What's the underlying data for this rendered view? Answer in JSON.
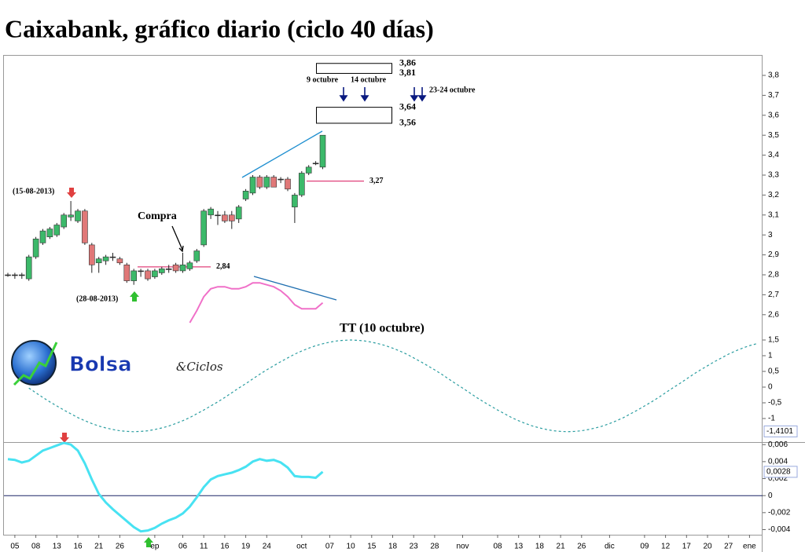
{
  "title": "Caixabank, gráfico diario (ciclo 40 días)",
  "logo": {
    "name": "Bolsa",
    "suffix": "&Ciclos"
  },
  "chart_data": [
    {
      "type": "candlestick",
      "categories": [
        null,
        "05",
        null,
        null,
        "08",
        null,
        null,
        "13",
        null,
        null,
        "16",
        null,
        null,
        "21",
        null,
        null,
        "26",
        null,
        null,
        null,
        null,
        "ep",
        null,
        null,
        null,
        "06",
        null,
        null,
        "11",
        null,
        null,
        "16",
        null,
        null,
        "19",
        null,
        null,
        "24",
        null,
        null,
        null,
        null,
        "oct",
        null,
        null,
        null,
        "07",
        null,
        null,
        "10",
        null,
        null,
        "15",
        null,
        null,
        "18",
        null,
        null,
        "23",
        null,
        null,
        "28",
        null,
        null,
        null,
        "nov",
        null,
        null,
        null,
        null,
        "08",
        null,
        null,
        "13",
        null,
        null,
        "18",
        null,
        null,
        "21",
        null,
        null,
        "26",
        null,
        null,
        null,
        "dic",
        null,
        null,
        null,
        null,
        "09",
        null,
        null,
        "12",
        null,
        null,
        "17",
        null,
        null,
        "20",
        null,
        null,
        "27",
        null,
        null,
        "ene",
        null
      ],
      "open": [
        2.8,
        2.8,
        2.8,
        2.78,
        2.89,
        2.96,
        2.99,
        3.0,
        3.04,
        3.09,
        3.07,
        3.12,
        2.95,
        2.86,
        2.87,
        2.89,
        2.88,
        2.85,
        2.77,
        2.82,
        2.82,
        2.79,
        2.81,
        2.83,
        2.85,
        2.82,
        2.83,
        2.87,
        2.95,
        3.1,
        3.1,
        3.1,
        3.1,
        3.08,
        3.18,
        3.21,
        3.29,
        3.24,
        3.29,
        3.28,
        3.28,
        3.14,
        3.2,
        3.31,
        3.36,
        3.34,
        null,
        null,
        null,
        null,
        null,
        null,
        null,
        null,
        null,
        null,
        null,
        null,
        null,
        null,
        null,
        null,
        null,
        null,
        null,
        null,
        null,
        null,
        null,
        null,
        null,
        null,
        null,
        null,
        null,
        null,
        null,
        null,
        null,
        null,
        null,
        null,
        null,
        null,
        null,
        null,
        null,
        null,
        null,
        null,
        null,
        null,
        null,
        null,
        null,
        null,
        null,
        null,
        null,
        null,
        null,
        null,
        null,
        null,
        null,
        null,
        null,
        null
      ],
      "high": [
        2.81,
        2.81,
        2.81,
        2.9,
        2.99,
        3.03,
        3.04,
        3.06,
        3.11,
        3.17,
        3.13,
        3.13,
        2.96,
        2.89,
        2.9,
        2.91,
        2.89,
        2.86,
        2.83,
        2.83,
        2.83,
        2.83,
        2.84,
        2.85,
        2.86,
        2.91,
        2.87,
        2.93,
        3.13,
        3.14,
        3.12,
        3.12,
        3.12,
        3.15,
        3.23,
        3.3,
        3.3,
        3.3,
        3.3,
        3.29,
        3.29,
        3.21,
        3.32,
        3.35,
        3.37,
        3.5,
        null,
        null,
        null,
        null,
        null,
        null,
        null,
        null,
        null,
        null,
        null,
        null,
        null,
        null,
        null,
        null,
        null,
        null,
        null,
        null,
        null,
        null,
        null,
        null,
        null,
        null,
        null,
        null,
        null,
        null,
        null,
        null,
        null,
        null,
        null,
        null,
        null,
        null,
        null,
        null,
        null,
        null,
        null,
        null,
        null,
        null,
        null,
        null,
        null,
        null,
        null,
        null,
        null,
        null,
        null,
        null,
        null,
        null,
        null,
        null,
        null,
        null
      ],
      "low": [
        2.79,
        2.78,
        2.78,
        2.77,
        2.88,
        2.95,
        2.98,
        2.99,
        3.03,
        3.07,
        3.06,
        2.95,
        2.81,
        2.81,
        2.85,
        2.87,
        2.85,
        2.76,
        2.75,
        2.79,
        2.77,
        2.78,
        2.8,
        2.81,
        2.81,
        2.81,
        2.82,
        2.86,
        2.94,
        3.08,
        3.05,
        3.06,
        3.03,
        3.06,
        3.17,
        3.2,
        3.23,
        3.23,
        3.24,
        3.26,
        3.22,
        3.06,
        3.19,
        3.3,
        3.35,
        3.33,
        null,
        null,
        null,
        null,
        null,
        null,
        null,
        null,
        null,
        null,
        null,
        null,
        null,
        null,
        null,
        null,
        null,
        null,
        null,
        null,
        null,
        null,
        null,
        null,
        null,
        null,
        null,
        null,
        null,
        null,
        null,
        null,
        null,
        null,
        null,
        null,
        null,
        null,
        null,
        null,
        null,
        null,
        null,
        null,
        null,
        null,
        null,
        null,
        null,
        null,
        null,
        null,
        null,
        null,
        null,
        null,
        null,
        null,
        null,
        null,
        null,
        null
      ],
      "close": [
        2.8,
        2.8,
        2.8,
        2.89,
        2.98,
        3.02,
        3.03,
        3.05,
        3.1,
        3.1,
        3.12,
        2.96,
        2.85,
        2.88,
        2.89,
        2.89,
        2.86,
        2.77,
        2.82,
        2.82,
        2.78,
        2.82,
        2.83,
        2.83,
        2.82,
        2.85,
        2.86,
        2.92,
        3.12,
        3.13,
        3.1,
        3.07,
        3.07,
        3.14,
        3.22,
        3.29,
        3.24,
        3.29,
        3.24,
        3.28,
        3.23,
        3.2,
        3.31,
        3.34,
        3.36,
        3.5,
        null,
        null,
        null,
        null,
        null,
        null,
        null,
        null,
        null,
        null,
        null,
        null,
        null,
        null,
        null,
        null,
        null,
        null,
        null,
        null,
        null,
        null,
        null,
        null,
        null,
        null,
        null,
        null,
        null,
        null,
        null,
        null,
        null,
        null,
        null,
        null,
        null,
        null,
        null,
        null,
        null,
        null,
        null,
        null,
        null,
        null,
        null,
        null,
        null,
        null,
        null,
        null,
        null,
        null,
        null,
        null,
        null,
        null,
        null,
        null,
        null,
        null
      ],
      "up_color": "#3cb96a",
      "down_color": "#e07878",
      "series": [
        {
          "color": "#f070c8",
          "values": [
            null,
            null,
            null,
            null,
            null,
            null,
            null,
            null,
            null,
            null,
            null,
            null,
            null,
            null,
            null,
            null,
            null,
            null,
            null,
            null,
            null,
            null,
            null,
            null,
            null,
            null,
            2.56,
            2.62,
            2.69,
            2.73,
            2.74,
            2.74,
            2.73,
            2.73,
            2.74,
            2.76,
            2.76,
            2.75,
            2.74,
            2.72,
            2.69,
            2.65,
            2.63,
            2.63,
            2.63,
            2.66,
            null,
            null,
            null,
            null,
            null,
            null,
            null,
            null,
            null,
            null,
            null,
            null,
            null,
            null,
            null,
            null,
            null,
            null,
            null,
            null,
            null,
            null,
            null,
            null,
            null,
            null,
            null,
            null,
            null,
            null,
            null,
            null,
            null,
            null,
            null,
            null,
            null,
            null,
            null,
            null,
            null,
            null,
            null,
            null,
            null,
            null,
            null,
            null,
            null,
            null,
            null,
            null,
            null,
            null,
            null,
            null,
            null,
            null,
            null,
            null,
            null,
            null
          ]
        }
      ],
      "levels": [
        {
          "value": 2.84,
          "label": "2,84"
        },
        {
          "value": 3.27,
          "label": "3,27"
        }
      ],
      "level_color": "#e0407a",
      "targets": [
        {
          "high": 3.86,
          "low": 3.81,
          "high_label": "3,86",
          "low_label": "3,81"
        },
        {
          "high": 3.64,
          "low": 3.56,
          "high_label": "3,64",
          "low_label": "3,56"
        }
      ],
      "annotations": [
        "(15-08-2013)",
        "(28-08-2013)",
        "Compra",
        "9 octubre",
        "14 octubre",
        "23-24 octubre"
      ],
      "ylim": [
        2.55,
        3.9
      ],
      "yticks": [
        {
          "value": 2.6,
          "label": "2,6"
        },
        {
          "value": 2.7,
          "label": "2,7"
        },
        {
          "value": 2.8,
          "label": "2,8"
        },
        {
          "value": 2.9,
          "label": "2,9"
        },
        3,
        {
          "value": 3.1,
          "label": "3,1"
        },
        {
          "value": 3.2,
          "label": "3,2"
        },
        {
          "value": 3.3,
          "label": "3,3"
        },
        {
          "value": 3.4,
          "label": "3,4"
        },
        {
          "value": 3.5,
          "label": "3,5"
        },
        {
          "value": 3.6,
          "label": "3,6"
        },
        {
          "value": 3.7,
          "label": "3,7"
        },
        {
          "value": 3.8,
          "label": "3,8"
        }
      ]
    },
    {
      "type": "line",
      "title": "TT (10 octubre)",
      "color": "#2a9da0",
      "dashed": true,
      "values": [
        null,
        null,
        null,
        -0.03,
        -0.18,
        -0.33,
        -0.47,
        -0.6,
        -0.73,
        -0.85,
        -0.97,
        -1.07,
        -1.16,
        -1.24,
        -1.3,
        -1.35,
        -1.39,
        -1.41,
        -1.42,
        -1.41,
        -1.39,
        -1.35,
        -1.3,
        -1.24,
        -1.16,
        -1.07,
        -0.97,
        -0.85,
        -0.73,
        -0.6,
        -0.47,
        -0.33,
        -0.18,
        -0.03,
        0.11,
        0.26,
        0.41,
        0.55,
        0.68,
        0.81,
        0.93,
        1.05,
        1.15,
        1.24,
        1.32,
        1.38,
        1.43,
        1.47,
        1.49,
        1.5,
        1.49,
        1.47,
        1.43,
        1.38,
        1.32,
        1.24,
        1.15,
        1.05,
        0.93,
        0.81,
        0.68,
        0.55,
        0.41,
        0.26,
        0.11,
        -0.03,
        -0.18,
        -0.33,
        -0.47,
        -0.6,
        -0.73,
        -0.85,
        -0.97,
        -1.07,
        -1.16,
        -1.24,
        -1.3,
        -1.35,
        -1.39,
        -1.41,
        -1.42,
        -1.41,
        -1.39,
        -1.35,
        -1.3,
        -1.24,
        -1.16,
        -1.07,
        -0.97,
        -0.85,
        -0.73,
        -0.6,
        -0.47,
        -0.33,
        -0.18,
        -0.03,
        0.11,
        0.26,
        0.41,
        0.55,
        0.68,
        0.81,
        0.93,
        1.05,
        1.15,
        1.24,
        1.32,
        1.38
      ],
      "axis_tag": {
        "value": -1.4101,
        "label": "-1,4101"
      },
      "ylim": [
        -1.7,
        1.8
      ],
      "yticks": [
        -1,
        {
          "value": -0.5,
          "label": "-0,5"
        },
        0,
        {
          "value": 0.5,
          "label": "0,5"
        },
        1,
        {
          "value": 1.5,
          "label": "1,5"
        }
      ]
    },
    {
      "type": "line",
      "color": "#48e2f2",
      "values": [
        0.0043,
        0.0042,
        0.0039,
        0.0041,
        0.0047,
        0.0053,
        0.0056,
        0.0059,
        0.0062,
        0.006,
        0.0053,
        0.0038,
        0.0019,
        0.0002,
        -0.0008,
        -0.0016,
        -0.0023,
        -0.003,
        -0.0037,
        -0.0042,
        -0.0041,
        -0.0038,
        -0.0033,
        -0.0029,
        -0.0026,
        -0.0021,
        -0.0013,
        -0.0002,
        0.001,
        0.0019,
        0.0023,
        0.0025,
        0.0027,
        0.003,
        0.0034,
        0.004,
        0.0043,
        0.0041,
        0.0042,
        0.0039,
        0.0033,
        0.0023,
        0.0022,
        0.0022,
        0.0021,
        0.0028,
        null,
        null,
        null,
        null,
        null,
        null,
        null,
        null,
        null,
        null,
        null,
        null,
        null,
        null,
        null,
        null,
        null,
        null,
        null,
        null,
        null,
        null,
        null,
        null,
        null,
        null,
        null,
        null,
        null,
        null,
        null,
        null,
        null,
        null,
        null,
        null,
        null,
        null,
        null,
        null,
        null,
        null,
        null,
        null,
        null,
        null,
        null,
        null,
        null,
        null,
        null,
        null,
        null,
        null,
        null,
        null,
        null,
        null,
        null,
        null,
        null,
        null
      ],
      "axis_tag": {
        "value": 0.0028,
        "label": "0,0028"
      },
      "ylim": [
        -0.0046,
        0.0063
      ],
      "yticks": [
        {
          "value": -0.004,
          "label": "-0,004"
        },
        {
          "value": -0.002,
          "label": "-0,002"
        },
        0,
        {
          "value": 0.002,
          "label": "0,002"
        },
        {
          "value": 0.004,
          "label": "0,004"
        },
        {
          "value": 0.006,
          "label": "0,006"
        }
      ]
    }
  ]
}
